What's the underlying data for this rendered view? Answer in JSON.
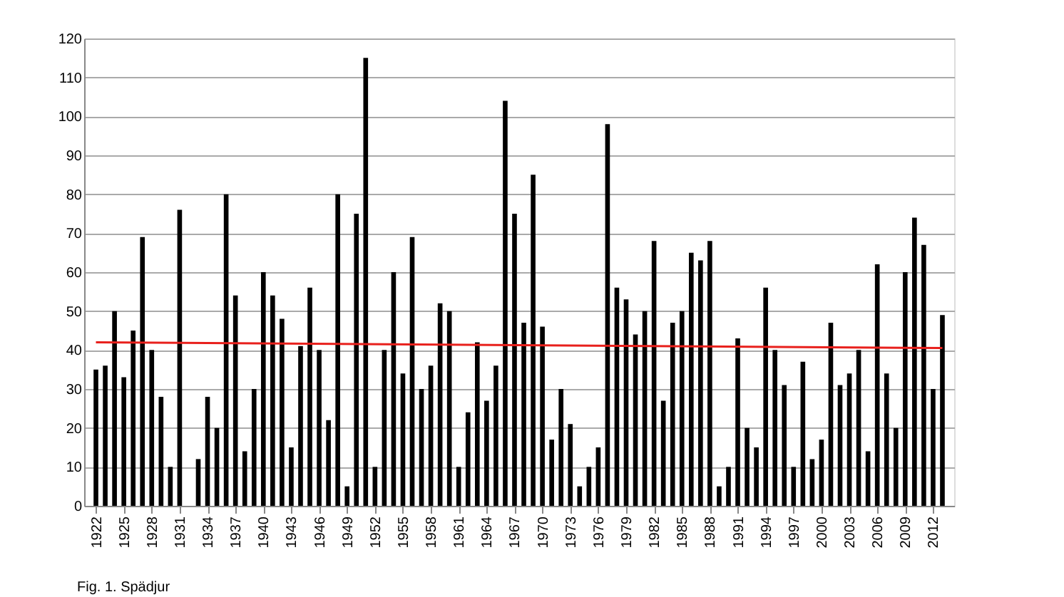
{
  "chart_data": {
    "type": "bar",
    "x": [
      1922,
      1923,
      1924,
      1925,
      1926,
      1927,
      1928,
      1929,
      1930,
      1931,
      1932,
      1933,
      1934,
      1935,
      1936,
      1937,
      1938,
      1939,
      1940,
      1941,
      1942,
      1943,
      1944,
      1945,
      1946,
      1947,
      1948,
      1949,
      1950,
      1951,
      1952,
      1953,
      1954,
      1955,
      1956,
      1957,
      1958,
      1959,
      1960,
      1961,
      1962,
      1963,
      1964,
      1965,
      1966,
      1967,
      1968,
      1969,
      1970,
      1971,
      1972,
      1973,
      1974,
      1975,
      1976,
      1977,
      1978,
      1979,
      1980,
      1981,
      1982,
      1983,
      1984,
      1985,
      1986,
      1987,
      1988,
      1989,
      1990,
      1991,
      1992,
      1993,
      1994,
      1995,
      1996,
      1997,
      1998,
      1999,
      2000,
      2001,
      2002,
      2003,
      2004,
      2005,
      2006,
      2007,
      2008,
      2009,
      2010,
      2011,
      2012,
      2013
    ],
    "series": [
      {
        "color": "#000000",
        "values": [
          35,
          36,
          50,
          33,
          45,
          69,
          40,
          28,
          10,
          76,
          null,
          12,
          28,
          20,
          80,
          54,
          14,
          30,
          60,
          54,
          48,
          15,
          41,
          56,
          40,
          22,
          80,
          5,
          75,
          115,
          10,
          40,
          60,
          34,
          69,
          30,
          36,
          52,
          50,
          10,
          24,
          42,
          27,
          36,
          104,
          75,
          47,
          85,
          46,
          17,
          30,
          21,
          5,
          10,
          15,
          98,
          56,
          53,
          44,
          50,
          68,
          27,
          47,
          50,
          65,
          63,
          68,
          5,
          10,
          43,
          20,
          15,
          56,
          40,
          31,
          10,
          37,
          12,
          17,
          47,
          31,
          34,
          40,
          14,
          62,
          34,
          20,
          60,
          74,
          67,
          30,
          49
        ]
      },
      {
        "type": "line",
        "color": "#e8201c",
        "x": [
          1922,
          2013
        ],
        "values": [
          42,
          40.5
        ]
      }
    ],
    "xlim": [
      1921.5,
      2013.5
    ],
    "xticks": [
      1922,
      1925,
      1928,
      1931,
      1934,
      1937,
      1940,
      1943,
      1946,
      1949,
      1952,
      1955,
      1958,
      1961,
      1964,
      1967,
      1970,
      1973,
      1976,
      1979,
      1982,
      1985,
      1988,
      1991,
      1994,
      1997,
      2000,
      2003,
      2006,
      2009,
      2012
    ],
    "ylim": [
      0,
      120
    ],
    "yticks": [
      0,
      10,
      20,
      30,
      40,
      50,
      60,
      70,
      80,
      90,
      100,
      110,
      120
    ],
    "grid": "y",
    "legend": false,
    "annotations": [
      "Fig. 1. Spädjur"
    ]
  }
}
